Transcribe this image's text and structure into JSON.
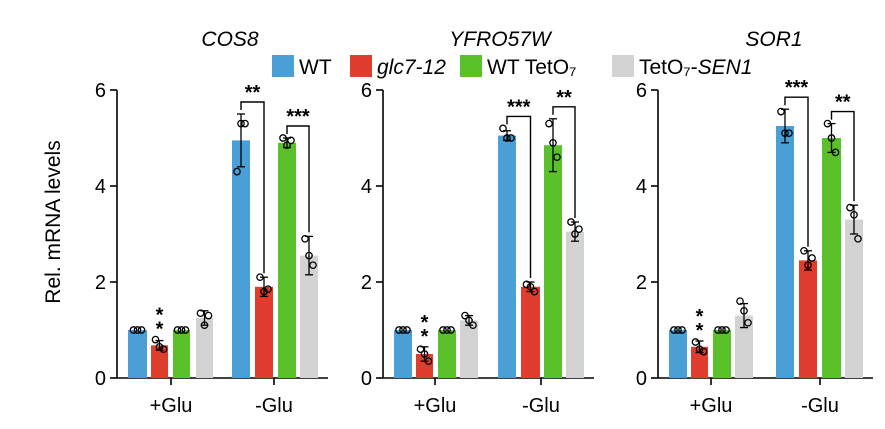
{
  "chart_data": {
    "type": "bar",
    "ylabel": "Rel. mRNA levels",
    "ylim": [
      0,
      6
    ],
    "yticks": [
      0,
      2,
      4,
      6
    ],
    "categories": [
      "+Glu",
      "-Glu"
    ],
    "legend": [
      {
        "key": "wt",
        "text": "WT",
        "italic": false,
        "color": "#4a9fd6"
      },
      {
        "key": "glc7",
        "text": "glc7-12",
        "italic": true,
        "color": "#e03d2f"
      },
      {
        "key": "wttet",
        "text": "WT TetO₇",
        "italic": false,
        "color": "#5ac12a"
      },
      {
        "key": "sen1",
        "prefix": "TetO₇-",
        "text": "SEN1",
        "italic": true,
        "color": "#d3d3d3"
      }
    ],
    "panels": [
      {
        "title": "COS8",
        "series": [
          {
            "name": "WT",
            "values": [
              1.0,
              4.95
            ],
            "errors": [
              0.0,
              0.55
            ],
            "points": [
              [
                1.0,
                1.0,
                1.0
              ],
              [
                4.3,
                5.3,
                5.3
              ]
            ]
          },
          {
            "name": "glc7-12",
            "values": [
              0.68,
              1.9
            ],
            "errors": [
              0.1,
              0.2
            ],
            "points": [
              [
                0.8,
                0.65,
                0.6
              ],
              [
                2.1,
                1.8,
                1.85
              ]
            ]
          },
          {
            "name": "WT TetO7",
            "values": [
              1.0,
              4.9
            ],
            "errors": [
              0.0,
              0.1
            ],
            "points": [
              [
                1.0,
                1.0,
                1.0
              ],
              [
                5.0,
                4.85,
                4.95
              ]
            ]
          },
          {
            "name": "TetO7-SEN1",
            "values": [
              1.25,
              2.55
            ],
            "errors": [
              0.15,
              0.4
            ],
            "points": [
              [
                1.35,
                1.1,
                1.3
              ],
              [
                2.9,
                2.55,
                2.35
              ]
            ]
          }
        ],
        "annotations": [
          {
            "type": "star",
            "series": 1,
            "cat": 0,
            "text": "**"
          },
          {
            "type": "bracket",
            "from": 0,
            "to": 1,
            "cat": 1,
            "text": "**"
          },
          {
            "type": "bracket",
            "from": 2,
            "to": 3,
            "cat": 1,
            "text": "***"
          }
        ]
      },
      {
        "title": "YFRO57W",
        "series": [
          {
            "name": "WT",
            "values": [
              1.0,
              5.05
            ],
            "errors": [
              0.0,
              0.1
            ],
            "points": [
              [
                1.0,
                1.0,
                1.0
              ],
              [
                5.2,
                5.0,
                5.0
              ]
            ]
          },
          {
            "name": "glc7-12",
            "values": [
              0.5,
              1.9
            ],
            "errors": [
              0.15,
              0.1
            ],
            "points": [
              [
                0.6,
                0.5,
                0.35
              ],
              [
                1.95,
                1.9,
                1.8
              ]
            ]
          },
          {
            "name": "WT TetO7",
            "values": [
              1.0,
              4.85
            ],
            "errors": [
              0.0,
              0.55
            ],
            "points": [
              [
                1.0,
                1.0,
                1.0
              ],
              [
                5.3,
                4.9,
                4.6
              ]
            ]
          },
          {
            "name": "TetO7-SEN1",
            "values": [
              1.2,
              3.05
            ],
            "errors": [
              0.1,
              0.2
            ],
            "points": [
              [
                1.3,
                1.2,
                1.1
              ],
              [
                3.25,
                3.0,
                3.1
              ]
            ]
          }
        ],
        "annotations": [
          {
            "type": "star",
            "series": 1,
            "cat": 0,
            "text": "**"
          },
          {
            "type": "bracket",
            "from": 0,
            "to": 1,
            "cat": 1,
            "text": "***"
          },
          {
            "type": "bracket",
            "from": 2,
            "to": 3,
            "cat": 1,
            "text": "**"
          }
        ]
      },
      {
        "title": "SOR1",
        "series": [
          {
            "name": "WT",
            "values": [
              1.0,
              5.25
            ],
            "errors": [
              0.0,
              0.35
            ],
            "points": [
              [
                1.0,
                1.0,
                1.0
              ],
              [
                5.55,
                5.1,
                5.1
              ]
            ]
          },
          {
            "name": "glc7-12",
            "values": [
              0.65,
              2.45
            ],
            "errors": [
              0.12,
              0.2
            ],
            "points": [
              [
                0.75,
                0.6,
                0.55
              ],
              [
                2.65,
                2.35,
                2.5
              ]
            ]
          },
          {
            "name": "WT TetO7",
            "values": [
              1.0,
              5.0
            ],
            "errors": [
              0.0,
              0.3
            ],
            "points": [
              [
                1.0,
                1.0,
                1.0
              ],
              [
                5.3,
                5.0,
                4.7
              ]
            ]
          },
          {
            "name": "TetO7-SEN1",
            "values": [
              1.3,
              3.3
            ],
            "errors": [
              0.25,
              0.3
            ],
            "points": [
              [
                1.6,
                1.4,
                1.15
              ],
              [
                3.55,
                3.4,
                2.9
              ]
            ]
          }
        ],
        "annotations": [
          {
            "type": "star",
            "series": 1,
            "cat": 0,
            "text": "**"
          },
          {
            "type": "bracket",
            "from": 0,
            "to": 1,
            "cat": 1,
            "text": "***"
          },
          {
            "type": "bracket",
            "from": 2,
            "to": 3,
            "cat": 1,
            "text": "**"
          }
        ]
      }
    ]
  }
}
